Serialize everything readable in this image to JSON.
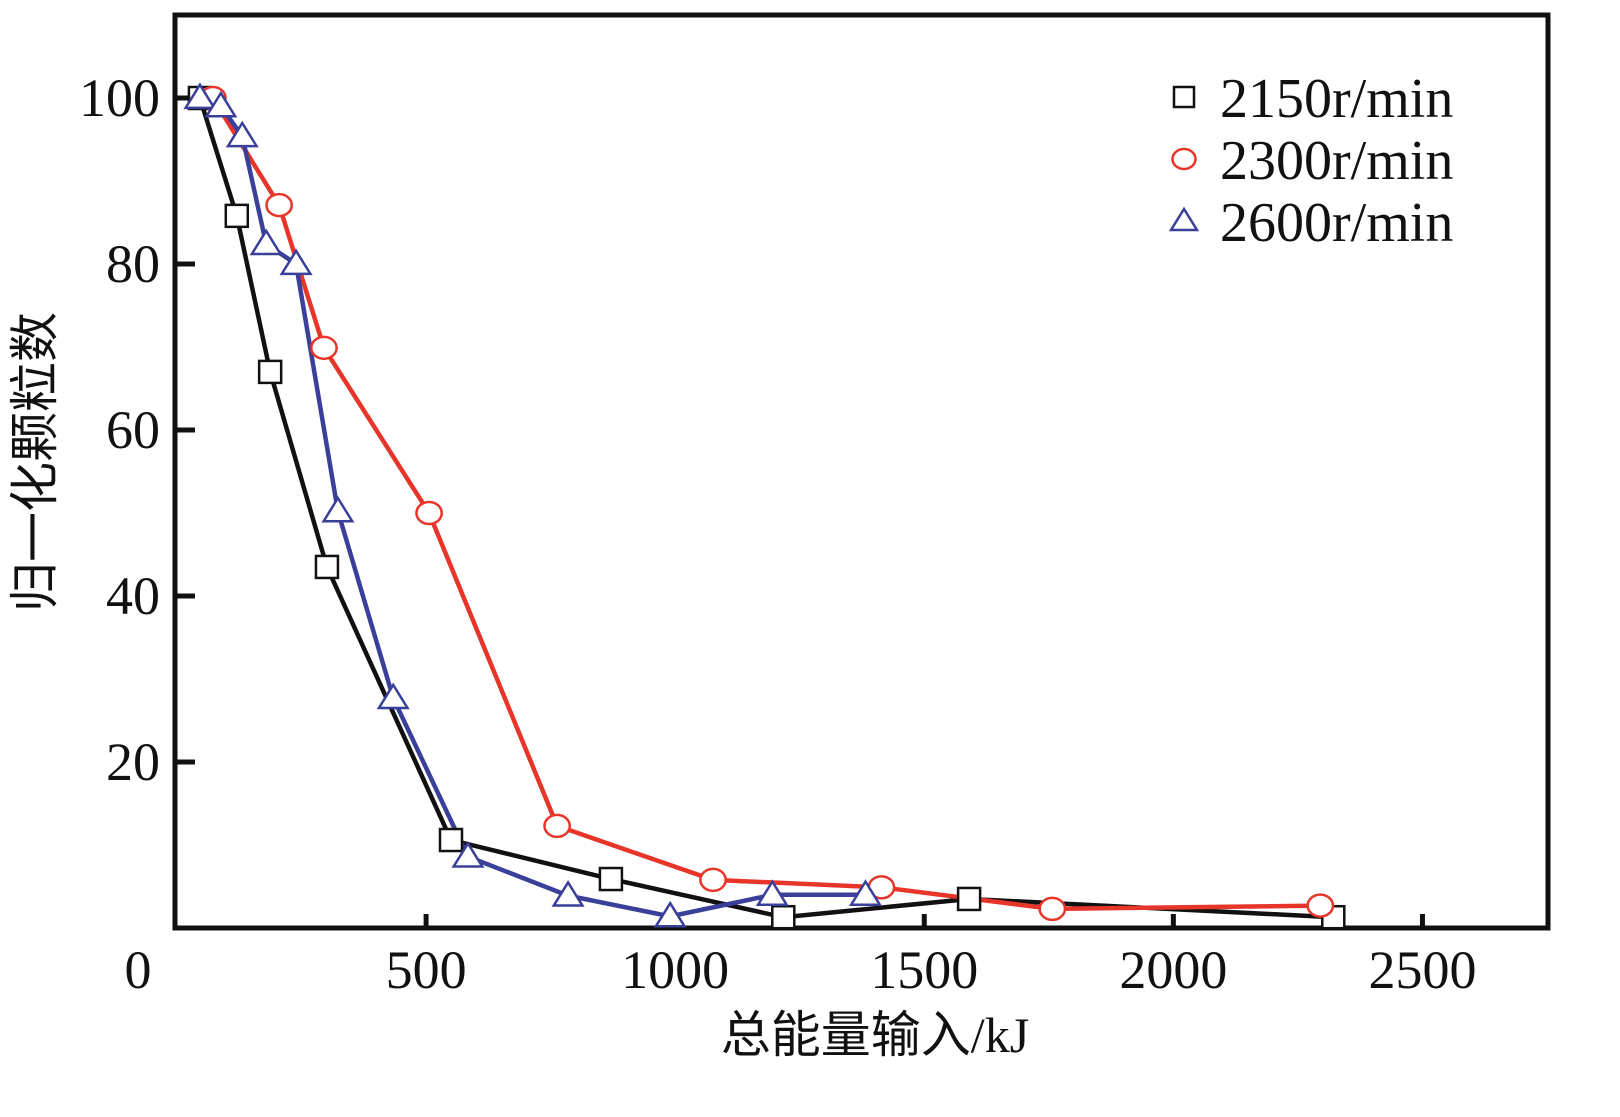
{
  "chart_data": {
    "type": "line",
    "title": "",
    "xlabel": "总能量输入/kJ",
    "ylabel": "归一化颗粒数",
    "xlim": [
      0,
      2750
    ],
    "ylim": [
      0,
      110
    ],
    "xticks": [
      0,
      500,
      1000,
      1500,
      2000,
      2500
    ],
    "yticks": [
      20,
      40,
      60,
      80,
      100
    ],
    "xtick_labels": [
      "0",
      "500",
      "1000",
      "1500",
      "2000",
      "2500"
    ],
    "ytick_labels": [
      "20",
      "40",
      "60",
      "80",
      "100"
    ],
    "grid": false,
    "legend_position": "top-right",
    "series": [
      {
        "name": "2150r/min",
        "color": "#111111",
        "marker": "square",
        "x": [
          46,
          120,
          187,
          301,
          550,
          871,
          1217,
          1590,
          2321
        ],
        "y": [
          100,
          85.8,
          67,
          43.5,
          10.6,
          5.9,
          1.3,
          3.5,
          1.3
        ]
      },
      {
        "name": "2300r/min",
        "color": "#e8352a",
        "marker": "circle",
        "x": [
          72,
          205,
          295,
          506,
          763,
          1076,
          1414,
          1757,
          2295
        ],
        "y": [
          100,
          87.1,
          69.9,
          50,
          12.3,
          5.8,
          4.9,
          2.3,
          2.7
        ]
      },
      {
        "name": "2600r/min",
        "color": "#3a3f9a",
        "marker": "triangle",
        "x": [
          46,
          88,
          131,
          179,
          239,
          323,
          434,
          584,
          785,
          990,
          1195,
          1382
        ],
        "y": [
          100,
          99,
          95.4,
          82.4,
          80,
          50.2,
          27.7,
          8.6,
          3.9,
          1.4,
          4,
          4
        ]
      }
    ]
  }
}
